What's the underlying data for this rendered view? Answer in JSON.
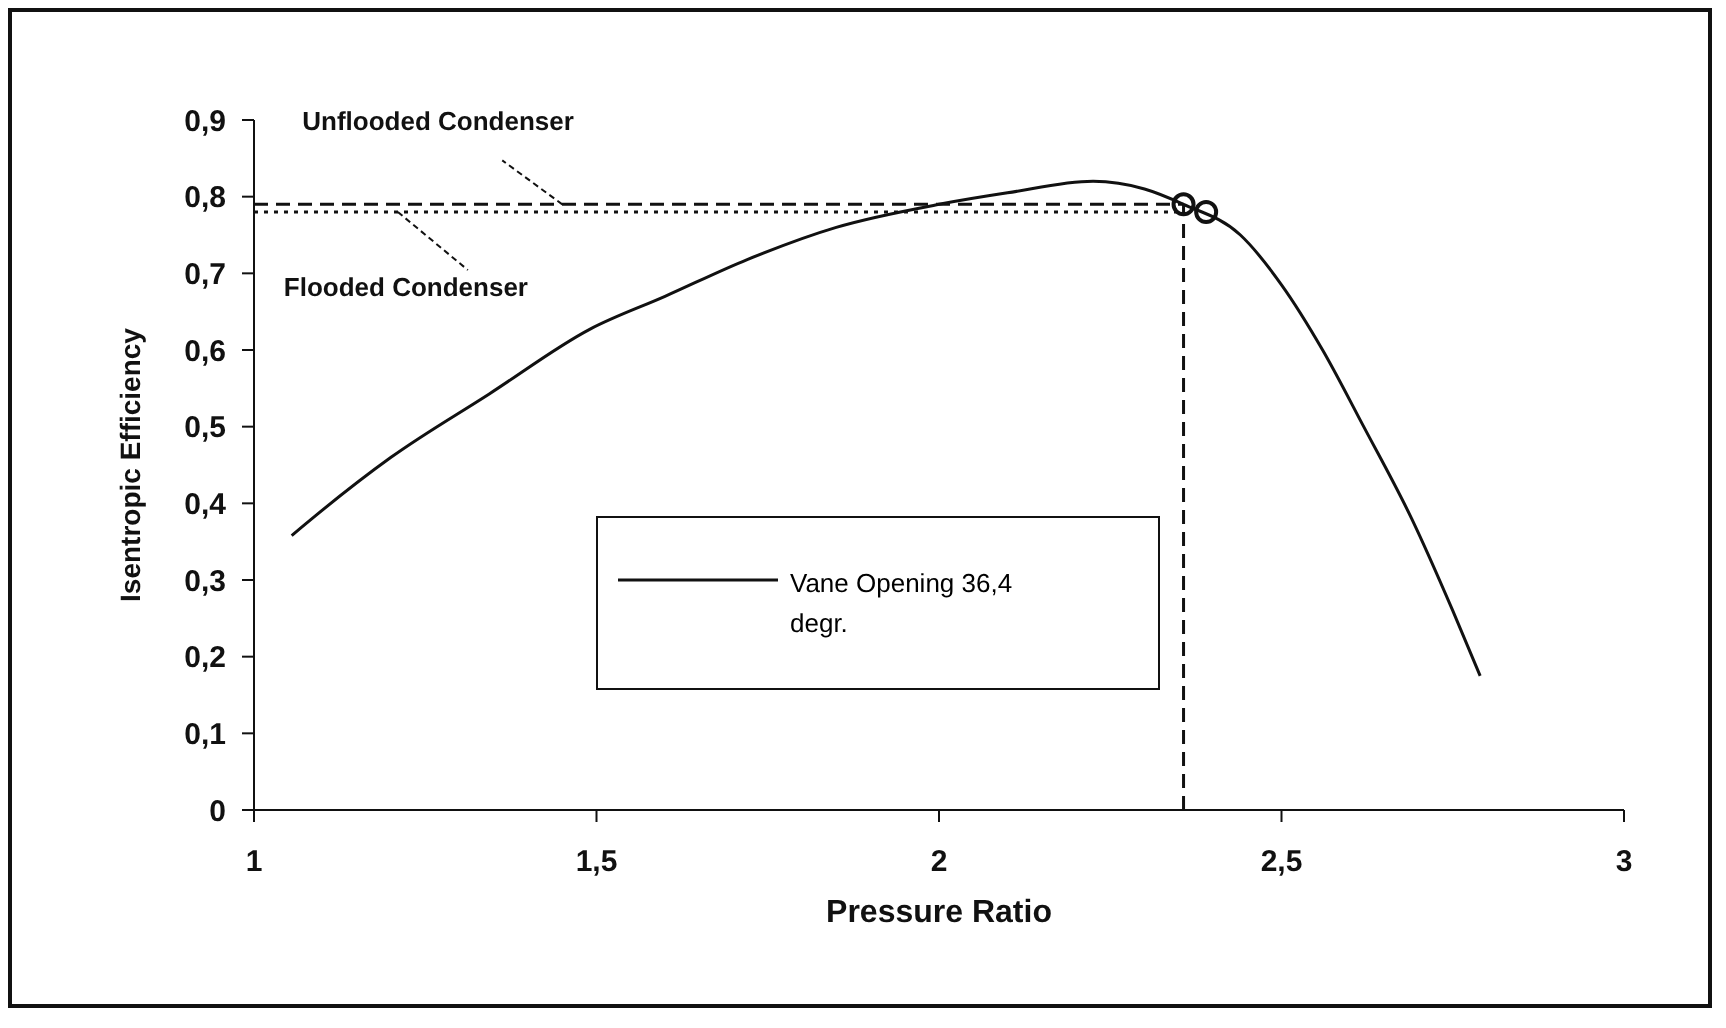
{
  "chart_data": {
    "type": "line",
    "xlabel": "Pressure Ratio",
    "ylabel": "Isentropic Efficiency",
    "xlim": [
      1,
      3
    ],
    "xticks": [
      1,
      {
        "value": 1.5,
        "label": "1,5"
      },
      2,
      {
        "value": 2.5,
        "label": "2,5"
      },
      3
    ],
    "ylim": [
      0,
      0.9
    ],
    "yticks": [
      0,
      {
        "value": 0.1,
        "label": "0,1"
      },
      {
        "value": 0.2,
        "label": "0,2"
      },
      {
        "value": 0.3,
        "label": "0,3"
      },
      {
        "value": 0.4,
        "label": "0,4"
      },
      {
        "value": 0.5,
        "label": "0,5"
      },
      {
        "value": 0.6,
        "label": "0,6"
      },
      {
        "value": 0.7,
        "label": "0,7"
      },
      {
        "value": 0.8,
        "label": "0,8"
      },
      {
        "value": 0.9,
        "label": "0,9"
      }
    ],
    "grid": false,
    "legend": "bottom",
    "marker": "none",
    "line_style": "solid",
    "series": [
      {
        "name": "Vane Opening 36,4 degr.",
        "color": "#111111",
        "x": [
          1.055,
          1.09,
          1.2,
          1.344,
          1.49,
          1.6,
          1.72,
          1.85,
          2.0,
          2.1,
          2.225,
          2.3,
          2.357,
          2.44,
          2.5,
          2.56,
          2.62,
          2.69,
          2.75,
          2.79
        ],
        "values": [
          0.358,
          0.384,
          0.46,
          0.543,
          0.627,
          0.67,
          0.718,
          0.76,
          0.79,
          0.805,
          0.82,
          0.81,
          0.79,
          0.75,
          0.685,
          0.6,
          0.5,
          0.38,
          0.26,
          0.175
        ]
      },
      {
        "color": "#111111",
        "line_style": "dashed",
        "x": [
          1,
          2.357
        ],
        "values": [
          0.79,
          0.79
        ]
      },
      {
        "color": "#111111",
        "line_style": "dotted",
        "x": [
          1,
          2.357
        ],
        "values": [
          0.78,
          0.78
        ]
      },
      {
        "color": "#111111",
        "line_style": "dashed",
        "x": [
          2.357,
          2.357
        ],
        "values": [
          0,
          0.79
        ]
      },
      {
        "type": "scatter",
        "marker": "circle",
        "color": "#111111",
        "x": [
          2.357,
          2.39
        ],
        "values": [
          0.79,
          0.78
        ]
      }
    ],
    "annotations": [
      {
        "text": "Unflooded Condenser",
        "x": 1.45,
        "y": 0.79
      },
      {
        "text": "Flooded Condenser",
        "x": 1.21,
        "y": 0.78
      }
    ]
  }
}
